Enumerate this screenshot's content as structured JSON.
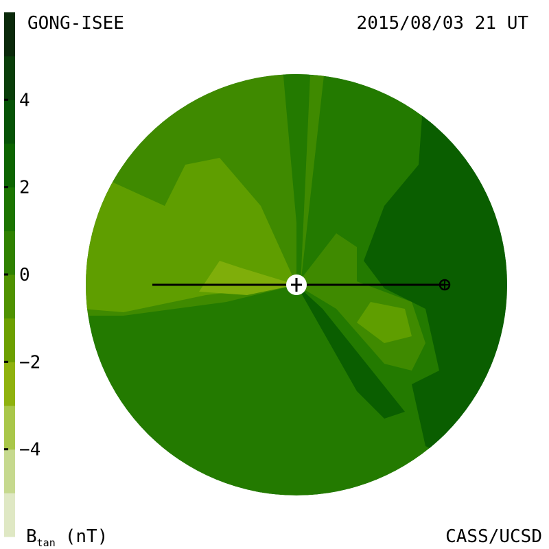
{
  "header": {
    "source": "GONG-ISEE",
    "time": "2015/08/03 21 UT",
    "credit": "CASS/UCSD"
  },
  "colorbar": {
    "label": {
      "main": "B",
      "sub": "tan",
      "unit": "(nT)"
    },
    "range": [
      -6,
      6
    ],
    "ticks": [
      {
        "value": 4,
        "label": "4"
      },
      {
        "value": 2,
        "label": "2"
      },
      {
        "value": 0,
        "label": "0"
      },
      {
        "value": -2,
        "label": "−2"
      },
      {
        "value": -4,
        "label": "−4"
      }
    ],
    "colors": [
      "#dfe8c4",
      "#c6d98e",
      "#a9c74a",
      "#8fb20e",
      "#6da000",
      "#4f9200",
      "#2f8100",
      "#1b7400",
      "#0c6400",
      "#065306",
      "#093e09",
      "#0a290a"
    ]
  }
}
